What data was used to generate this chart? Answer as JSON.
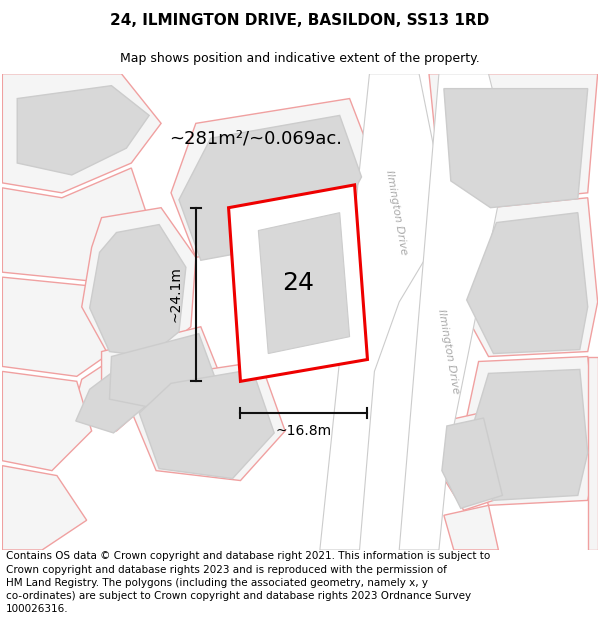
{
  "title": "24, ILMINGTON DRIVE, BASILDON, SS13 1RD",
  "subtitle": "Map shows position and indicative extent of the property.",
  "footer": "Contains OS data © Crown copyright and database right 2021. This information is subject to\nCrown copyright and database rights 2023 and is reproduced with the permission of\nHM Land Registry. The polygons (including the associated geometry, namely x, y\nco-ordinates) are subject to Crown copyright and database rights 2023 Ordnance Survey\n100026316.",
  "property_label": "24",
  "area_label": "~281m²/~0.069ac.",
  "width_label": "~16.8m",
  "height_label": "~24.1m",
  "title_fontsize": 11,
  "subtitle_fontsize": 9,
  "footer_fontsize": 7.5,
  "area_fontsize": 13,
  "measure_fontsize": 10,
  "property_number_fontsize": 18,
  "road_label_fontsize": 8,
  "map_bg": "#ececec",
  "road_fill": "#ffffff",
  "road_edge": "#cccccc",
  "plot_fill": "#f5f5f5",
  "plot_edge": "#f0a0a0",
  "building_fill": "#d8d8d8",
  "building_edge": "#cccccc",
  "subject_fill": "#ffffff",
  "subject_edge": "#ee0000",
  "dim_line_color": "#111111",
  "road_text_color": "#aaaaaa",
  "text_color": "#111111"
}
